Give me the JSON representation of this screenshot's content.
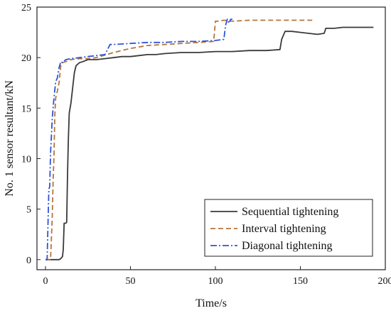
{
  "chart_data": {
    "type": "line",
    "title": "",
    "xlabel": "Time/s",
    "ylabel": "No. 1 sensor resultant/kN",
    "xlim": [
      -5,
      200
    ],
    "ylim": [
      -1,
      25
    ],
    "xticks": [
      0,
      50,
      100,
      150,
      200
    ],
    "yticks": [
      0,
      5,
      10,
      15,
      20,
      25
    ],
    "grid": false,
    "legend": {
      "position": "bottom-right",
      "entries": [
        "Sequential tightening",
        "Interval tightening",
        "Diagonal tightening"
      ]
    },
    "series": [
      {
        "name": "Sequential tightening",
        "color": "#3a3a3a",
        "dash": "solid",
        "x": [
          0,
          5,
          8,
          9,
          10,
          10.5,
          11,
          12,
          12.5,
          13,
          13.5,
          14,
          15,
          16,
          17,
          18,
          20,
          22,
          25,
          30,
          35,
          40,
          45,
          50,
          55,
          60,
          65,
          70,
          80,
          90,
          100,
          110,
          120,
          130,
          138,
          139,
          140,
          141,
          142,
          145,
          150,
          155,
          160,
          164,
          165,
          170,
          175,
          180,
          185,
          190,
          193
        ],
        "y": [
          0,
          0,
          0,
          0.1,
          0.3,
          1.0,
          3.6,
          3.6,
          3.7,
          8.5,
          12.0,
          14.5,
          15.5,
          17.0,
          18.5,
          19.2,
          19.5,
          19.6,
          19.8,
          19.8,
          19.9,
          20.0,
          20.1,
          20.1,
          20.2,
          20.3,
          20.3,
          20.4,
          20.5,
          20.5,
          20.6,
          20.6,
          20.7,
          20.7,
          20.8,
          21.8,
          22.2,
          22.6,
          22.6,
          22.6,
          22.5,
          22.4,
          22.3,
          22.4,
          22.9,
          22.9,
          23.0,
          23.0,
          23.0,
          23.0,
          23.0
        ]
      },
      {
        "name": "Interval tightening",
        "color": "#b5753a",
        "dash": "dashed",
        "x": [
          0,
          3,
          4,
          4.5,
          5,
          5.5,
          6,
          7,
          8,
          9,
          10,
          12,
          15,
          20,
          25,
          30,
          40,
          50,
          60,
          70,
          80,
          90,
          99,
          100,
          101,
          105,
          110,
          120,
          130,
          140,
          150,
          157
        ],
        "y": [
          0,
          0,
          4.2,
          7.8,
          10.2,
          14.3,
          16.0,
          16.7,
          17.5,
          19.2,
          19.5,
          19.6,
          19.8,
          19.9,
          19.9,
          20.0,
          20.5,
          20.9,
          21.2,
          21.3,
          21.4,
          21.5,
          21.6,
          23.6,
          23.6,
          23.7,
          23.6,
          23.7,
          23.7,
          23.7,
          23.7,
          23.7
        ]
      },
      {
        "name": "Diagonal tightening",
        "color": "#2f54d6",
        "dash": "dashdot",
        "x": [
          0,
          1,
          1.5,
          2,
          2.5,
          3,
          4,
          5,
          6,
          7,
          8,
          9,
          10,
          12,
          15,
          20,
          25,
          30,
          35,
          38,
          40,
          50,
          60,
          70,
          80,
          90,
          100,
          105,
          106,
          107,
          108,
          109,
          110
        ],
        "y": [
          0,
          0,
          3.5,
          7.0,
          7.2,
          10.5,
          14.0,
          16.0,
          17.6,
          18.0,
          19.0,
          19.6,
          19.5,
          19.8,
          19.9,
          20.0,
          20.1,
          20.2,
          20.3,
          21.3,
          21.3,
          21.4,
          21.5,
          21.5,
          21.6,
          21.6,
          21.7,
          21.8,
          23.2,
          23.8,
          23.4,
          23.8,
          23.8
        ]
      }
    ]
  }
}
